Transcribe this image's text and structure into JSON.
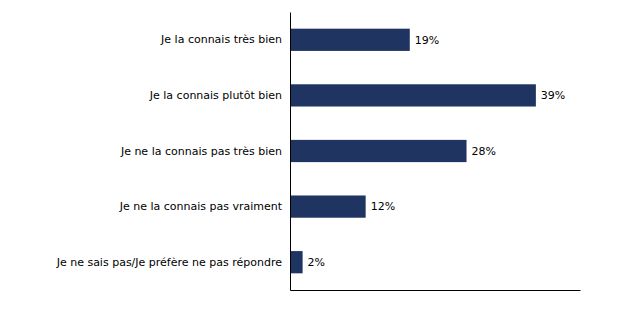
{
  "chart_data": {
    "type": "bar",
    "orientation": "horizontal",
    "categories": [
      "Je la connais très bien",
      "Je la connais plutôt bien",
      "Je ne la connais pas très bien",
      "Je ne la connais pas vraiment",
      "Je ne sais pas/Je préfère ne pas répondre"
    ],
    "values": [
      19,
      39,
      28,
      12,
      2
    ],
    "value_labels": [
      "19%",
      "39%",
      "28%",
      "12%",
      "2%"
    ],
    "color": "#1f3461",
    "xlim": [
      0,
      46
    ],
    "xticks": [],
    "data_labels": true,
    "tick_labels": "y"
  }
}
